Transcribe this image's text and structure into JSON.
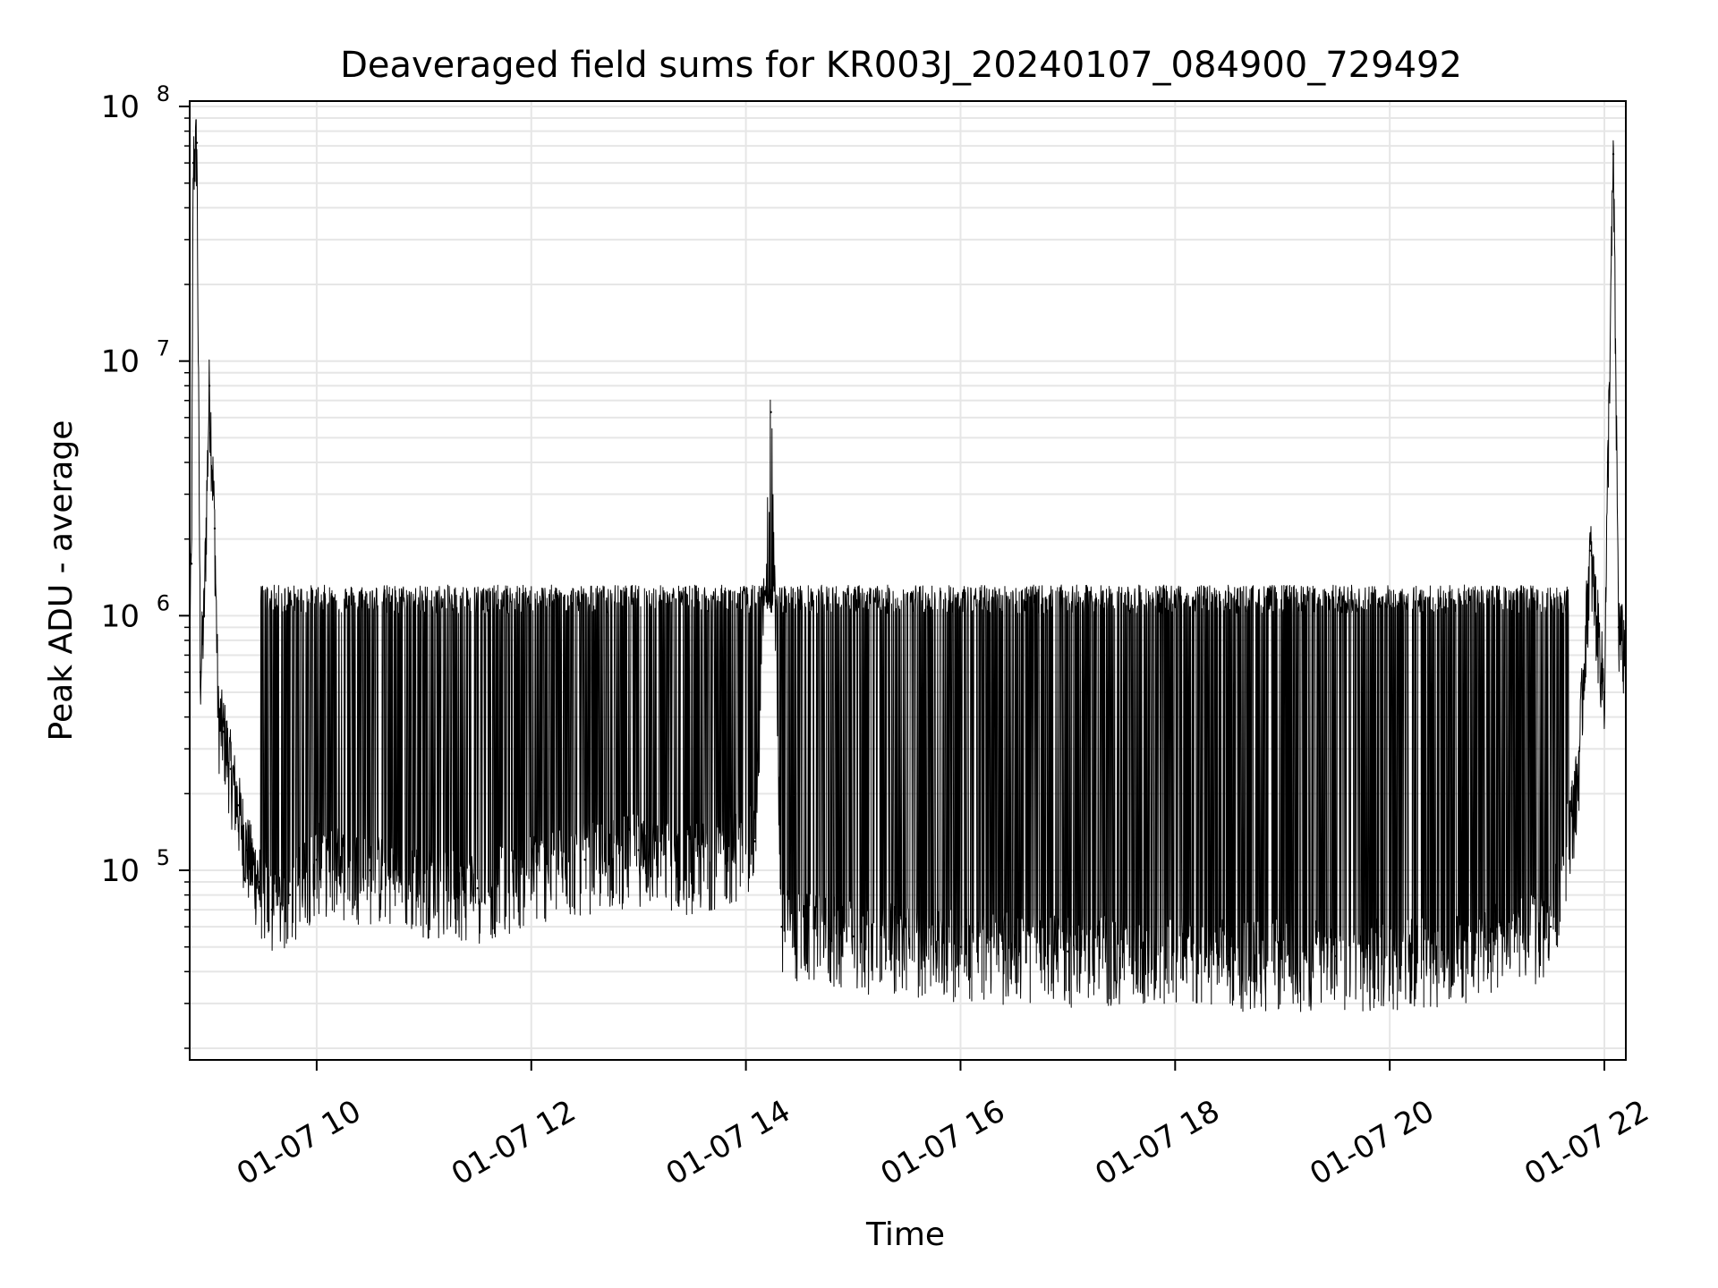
{
  "chart_data": {
    "type": "line",
    "title": "Deaveraged field sums for KR003J_20240107_084900_729492",
    "xlabel": "Time",
    "ylabel": "Peak ADU - average",
    "y_scale": "log",
    "ylim": [
      18000,
      105000000
    ],
    "xlim": [
      "2024-01-07 08:49",
      "2024-01-07 22:12"
    ],
    "grid": true,
    "x_ticks": [
      "01-07 10",
      "01-07 12",
      "01-07 14",
      "01-07 16",
      "01-07 18",
      "01-07 20",
      "01-07 22"
    ],
    "y_ticks": [
      {
        "base": "10",
        "exp": "5",
        "value": 100000
      },
      {
        "base": "10",
        "exp": "6",
        "value": 1000000
      },
      {
        "base": "10",
        "exp": "7",
        "value": 10000000
      },
      {
        "base": "10",
        "exp": "8",
        "value": 100000000
      }
    ],
    "series": [
      {
        "color": "#000000",
        "x": [
          "2024-01-07 08:49",
          "2024-01-07 08:50",
          "2024-01-07 08:51",
          "2024-01-07 08:53",
          "2024-01-07 08:55",
          "2024-01-07 08:57",
          "2024-01-07 09:00",
          "2024-01-07 09:03",
          "2024-01-07 09:05",
          "2024-01-07 09:08",
          "2024-01-07 09:12",
          "2024-01-07 09:16",
          "2024-01-07 09:21",
          "2024-01-07 09:28",
          "2024-01-07 09:35",
          "2024-01-07 09:45",
          "2024-01-07 10:00",
          "2024-01-07 10:30",
          "2024-01-07 11:00",
          "2024-01-07 11:30",
          "2024-01-07 12:00",
          "2024-01-07 12:30",
          "2024-01-07 13:00",
          "2024-01-07 13:30",
          "2024-01-07 14:05",
          "2024-01-07 14:14",
          "2024-01-07 14:20",
          "2024-01-07 15:00",
          "2024-01-07 16:00",
          "2024-01-07 17:00",
          "2024-01-07 17:45",
          "2024-01-07 18:30",
          "2024-01-07 19:30",
          "2024-01-07 20:30",
          "2024-01-07 21:30",
          "2024-01-07 21:45",
          "2024-01-07 21:52",
          "2024-01-07 22:00",
          "2024-01-07 22:02",
          "2024-01-07 22:05",
          "2024-01-07 22:08",
          "2024-01-07 22:12"
        ],
        "y": [
          900000,
          1600000,
          60000000,
          72000000,
          600000,
          1000000,
          8000000,
          2200000,
          400000,
          350000,
          250000,
          180000,
          120000,
          90000,
          70000,
          80000,
          110000,
          100000,
          90000,
          85000,
          100000,
          110000,
          120000,
          110000,
          130000,
          6300000,
          60000,
          55000,
          50000,
          48000,
          47000,
          46000,
          46000,
          47000,
          60000,
          220000,
          1800000,
          500000,
          4000000,
          65000000,
          900000,
          700000
        ],
        "upper_envelope": 1200000
      }
    ]
  }
}
